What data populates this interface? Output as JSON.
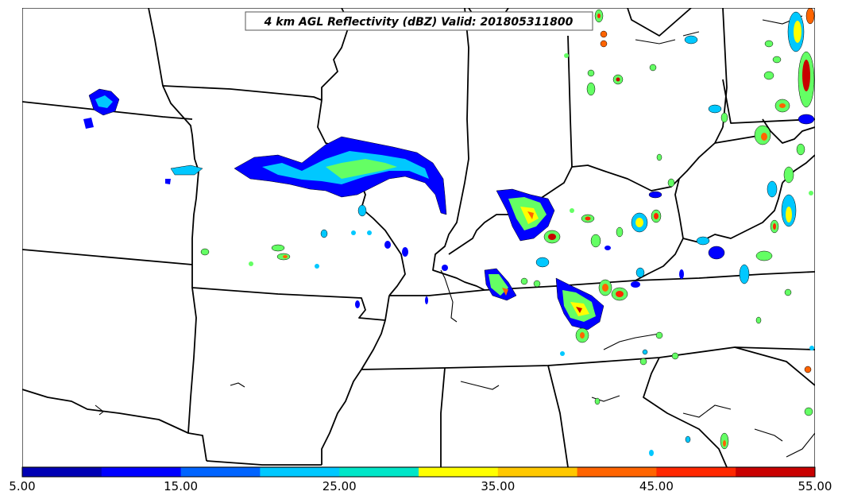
{
  "title": "4 km AGL Reflectivity (dBZ) Valid: 201805311800",
  "colorbar": {
    "colors": [
      "#0000b4",
      "#0000ff",
      "#0064ff",
      "#00c8ff",
      "#00e6c8",
      "#64ff64",
      "#ffff00",
      "#ffc800",
      "#ff6400",
      "#ff2800",
      "#c80000"
    ],
    "min": 5,
    "max": 55,
    "step": 5,
    "tick_values": [
      5,
      15,
      25,
      35,
      45,
      55
    ],
    "tick_labels": [
      "5.00",
      "15.00",
      "25.00",
      "35.00",
      "45.00",
      "55.00"
    ]
  },
  "map": {
    "line_color": "#000000",
    "echo_colors": {
      "light": "#0000ff",
      "moderate": "#00c8ff",
      "medium": "#64ff64",
      "strong": "#ffff00",
      "heavy": "#ff6400",
      "extreme": "#c80000"
    }
  }
}
